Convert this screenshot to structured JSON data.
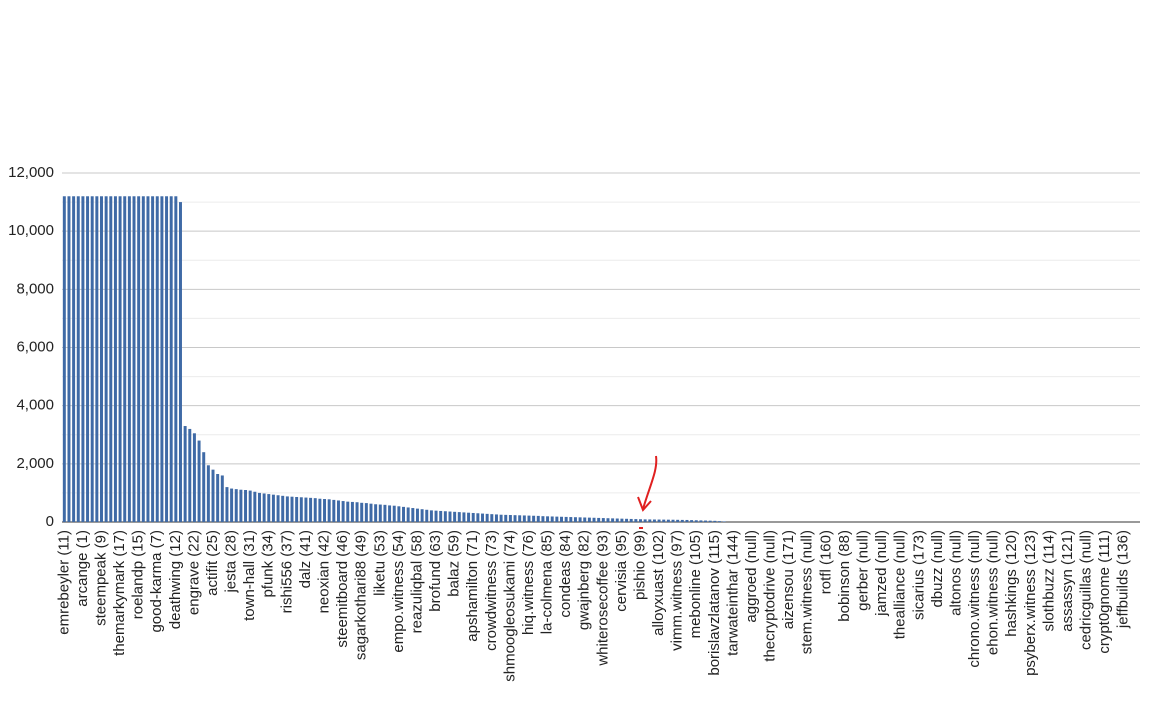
{
  "chart_data": {
    "type": "bar",
    "categories": [
      "emrebeyler (11)",
      null,
      null,
      null,
      "arcange (1)",
      null,
      null,
      null,
      "steempeak (9)",
      null,
      null,
      null,
      "themarkymark (17)",
      null,
      null,
      null,
      "roelandp (15)",
      null,
      null,
      null,
      "good-karma (7)",
      null,
      null,
      null,
      "deathwing (12)",
      null,
      null,
      null,
      "engrave (22)",
      null,
      null,
      null,
      "actifit (25)",
      null,
      null,
      null,
      "jesta (28)",
      null,
      null,
      null,
      "town-hall (31)",
      null,
      null,
      null,
      "pfunk (34)",
      null,
      null,
      null,
      "rishi556 (37)",
      null,
      null,
      null,
      "dalz (41)",
      null,
      null,
      null,
      "neoxian (42)",
      null,
      null,
      null,
      "steemitboard (46)",
      null,
      null,
      null,
      "sagarkothari88 (49)",
      null,
      null,
      null,
      "liketu (53)",
      null,
      null,
      null,
      "empo.witness (54)",
      null,
      null,
      null,
      "reazuliqbal (58)",
      null,
      null,
      null,
      "brofund (63)",
      null,
      null,
      null,
      "balaz (59)",
      null,
      null,
      null,
      "apshamilton (71)",
      null,
      null,
      null,
      "crowdwitness (73)",
      null,
      null,
      null,
      "shmoogleosukami (74)",
      null,
      null,
      null,
      "hiq.witness (76)",
      null,
      null,
      null,
      "la-colmena (85)",
      null,
      null,
      null,
      "condeas (84)",
      null,
      null,
      null,
      "gwajnberg (82)",
      null,
      null,
      null,
      "whiterosecoffee (93)",
      null,
      null,
      null,
      "cervisia (95)",
      null,
      null,
      null,
      "pishio (99)",
      null,
      null,
      null,
      "alloyxuast (102)",
      null,
      null,
      null,
      "vimm.witness (97)",
      null,
      null,
      null,
      "mebonline (105)",
      null,
      null,
      null,
      "borislavzlatanov (115)",
      null,
      null,
      null,
      "tarwateinthar (144)",
      null,
      null,
      null,
      "aggroed (null)",
      null,
      null,
      null,
      "thecryptodrive (null)",
      null,
      null,
      null,
      "aizensou (171)",
      null,
      null,
      null,
      "stem.witness (null)",
      null,
      null,
      null,
      "rotfl (160)",
      null,
      null,
      null,
      "bobinson (88)",
      null,
      null,
      null,
      "gerber (null)",
      null,
      null,
      null,
      "jamzed (null)",
      null,
      null,
      null,
      "thealliance (null)",
      null,
      null,
      null,
      "sicarius (173)",
      null,
      null,
      null,
      "dbuzz (null)",
      null,
      null,
      null,
      "altonos (null)",
      null,
      null,
      null,
      "chrono.witness (null)",
      null,
      null,
      null,
      "ehon.witness (null)",
      null,
      null,
      null,
      "hashkings (120)",
      null,
      null,
      null,
      "psyberx.witness (123)",
      null,
      null,
      null,
      "slothbuzz (114)",
      null,
      null,
      null,
      "assassyn (121)",
      null,
      null,
      null,
      "cedricguillas (null)",
      null,
      null,
      null,
      "crypt0gnome (111)",
      null,
      null,
      null,
      "jeffbuilds (136)",
      null,
      null,
      null
    ],
    "values": [
      11200,
      11200,
      11200,
      11200,
      11200,
      11200,
      11200,
      11200,
      11200,
      11200,
      11200,
      11200,
      11200,
      11200,
      11200,
      11200,
      11200,
      11200,
      11200,
      11200,
      11200,
      11200,
      11200,
      11200,
      11200,
      11000,
      3300,
      3200,
      3050,
      2800,
      2400,
      1950,
      1800,
      1650,
      1600,
      1200,
      1150,
      1130,
      1110,
      1100,
      1080,
      1040,
      1000,
      980,
      960,
      940,
      920,
      900,
      880,
      870,
      860,
      850,
      840,
      830,
      820,
      800,
      790,
      780,
      760,
      740,
      720,
      700,
      690,
      680,
      660,
      650,
      630,
      610,
      600,
      590,
      570,
      560,
      540,
      520,
      500,
      480,
      460,
      440,
      420,
      400,
      390,
      380,
      370,
      360,
      350,
      340,
      330,
      320,
      310,
      300,
      290,
      280,
      270,
      260,
      250,
      245,
      240,
      235,
      230,
      225,
      220,
      215,
      210,
      200,
      195,
      190,
      185,
      180,
      175,
      170,
      165,
      160,
      155,
      150,
      145,
      140,
      135,
      130,
      125,
      120,
      115,
      110,
      105,
      100,
      95,
      90,
      88,
      86,
      84,
      82,
      80,
      78,
      75,
      72,
      70,
      65,
      60,
      55,
      50,
      45,
      40,
      30,
      20,
      0,
      0,
      0,
      0,
      0,
      0,
      0,
      0,
      0,
      0,
      0,
      0,
      0,
      0,
      0,
      0,
      0,
      0,
      0,
      0,
      0,
      0,
      0,
      0,
      0,
      0,
      0,
      0,
      0,
      0,
      0,
      0,
      0,
      0,
      0,
      0,
      0,
      0,
      0,
      0,
      0,
      0,
      0,
      0,
      0,
      0,
      0,
      0,
      0,
      0,
      0,
      0,
      0,
      0,
      0,
      0,
      0,
      0,
      0,
      0,
      0,
      0,
      0,
      0,
      0,
      0,
      0,
      0,
      0,
      0,
      0,
      0,
      0,
      0,
      0,
      0,
      0,
      0,
      0,
      0,
      0,
      0,
      0,
      0,
      0,
      0,
      0,
      0,
      0
    ],
    "color": "#3f6aa6",
    "ylim": [
      0,
      12000
    ],
    "yticks": [
      0,
      {
        "value": 2000,
        "label": "2,000"
      },
      {
        "value": 4000,
        "label": "4,000"
      },
      {
        "value": 6000,
        "label": "6,000"
      },
      {
        "value": 8000,
        "label": "8,000"
      },
      {
        "value": 10000,
        "label": "10,000"
      },
      {
        "value": 12000,
        "label": "12,000"
      }
    ],
    "minor_yticks": [
      1000,
      3000,
      5000,
      7000,
      9000,
      11000
    ],
    "grid": true
  }
}
